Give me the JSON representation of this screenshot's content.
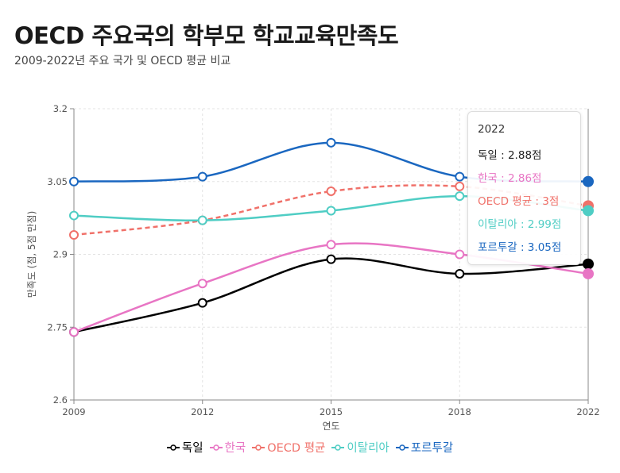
{
  "title": "OECD 주요국의 학부모 학교교육만족도",
  "subtitle": "2009-2022년 주요 국가 및 OECD 평균 비교",
  "chart_data": {
    "type": "line",
    "categories": [
      "2009",
      "2012",
      "2015",
      "2018",
      "2022"
    ],
    "xlabel": "연도",
    "ylabel": "만족도 (점, 5점 만점)",
    "ylim": [
      2.6,
      3.2
    ],
    "yticks": [
      "2.6",
      "2.75",
      "2.9",
      "3.05",
      "3.2"
    ],
    "grid": true,
    "legend": "bottom",
    "series": [
      {
        "name": "독일",
        "color": "#000000",
        "dashed": false,
        "values": [
          2.74,
          2.8,
          2.89,
          2.86,
          2.88
        ]
      },
      {
        "name": "한국",
        "color": "#e875c4",
        "dashed": false,
        "values": [
          2.74,
          2.84,
          2.92,
          2.9,
          2.86
        ]
      },
      {
        "name": "OECD 평균",
        "color": "#f0716a",
        "dashed": true,
        "values": [
          2.94,
          2.97,
          3.03,
          3.04,
          3.0
        ]
      },
      {
        "name": "이탈리아",
        "color": "#4fcdc4",
        "dashed": false,
        "values": [
          2.98,
          2.97,
          2.99,
          3.02,
          2.99
        ]
      },
      {
        "name": "포르투갈",
        "color": "#1a67c0",
        "dashed": false,
        "values": [
          3.05,
          3.06,
          3.13,
          3.06,
          3.05
        ]
      }
    ]
  },
  "tooltip": {
    "title": "2022",
    "rows": [
      "독일 : 2.88점",
      "한국 : 2.86점",
      "OECD 평균 : 3점",
      "이탈리아 : 2.99점",
      "포르투갈 : 3.05점"
    ]
  }
}
